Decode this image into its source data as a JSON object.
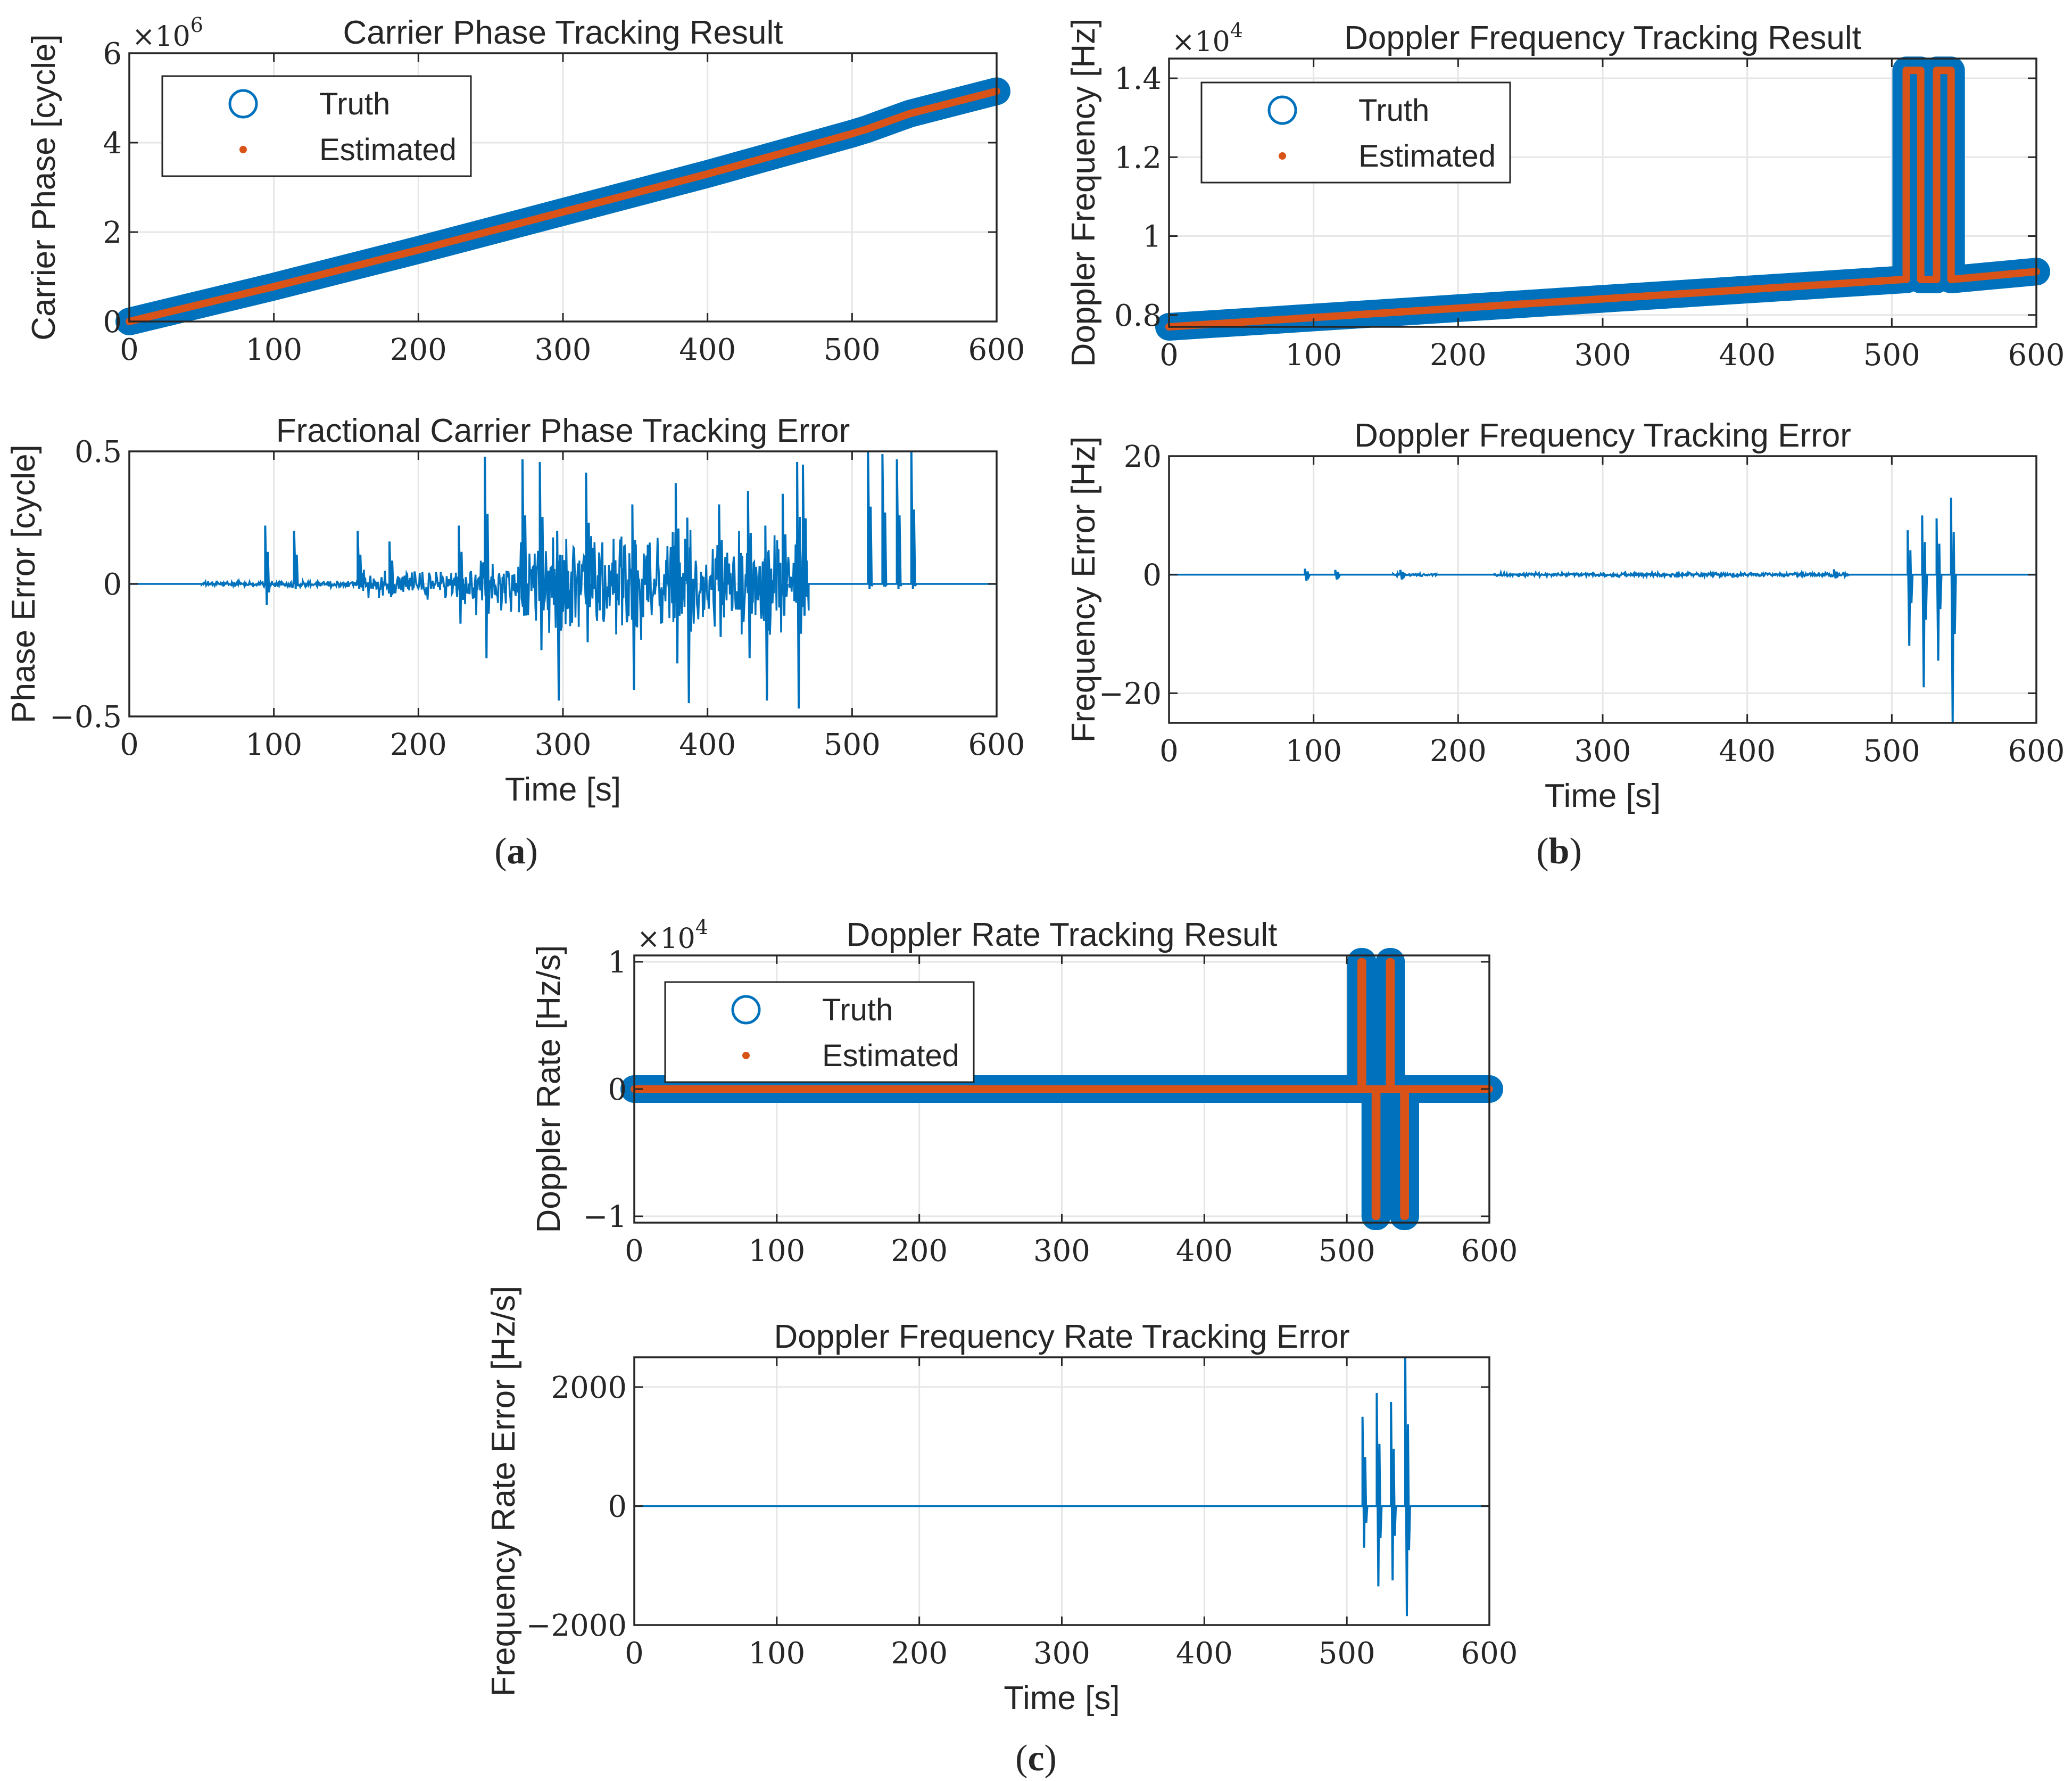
{
  "chart_data": [
    {
      "id": "a_top",
      "type": "line",
      "title": "Carrier Phase Tracking Result",
      "xlabel": "",
      "ylabel": "Carrier Phase [cycle]",
      "exponent_label": "×10",
      "exponent_power": "6",
      "xlim": [
        0,
        600
      ],
      "ylim": [
        0,
        6
      ],
      "xticks": [
        0,
        100,
        200,
        300,
        400,
        500,
        600
      ],
      "xtick_labels": [
        "0",
        "100",
        "200",
        "300",
        "400",
        "500",
        "600"
      ],
      "yticks": [
        0,
        2,
        4,
        6
      ],
      "ytick_labels": [
        "0",
        "2",
        "4",
        "6"
      ],
      "grid": true,
      "legend": {
        "position": "top-left",
        "entries": [
          "Truth",
          "Estimated"
        ]
      },
      "series": [
        {
          "name": "Truth",
          "style": "thick",
          "color": "#0072BD",
          "x": [
            0,
            100,
            200,
            300,
            400,
            500,
            510,
            540,
            600
          ],
          "y": [
            0,
            0.78,
            1.6,
            2.45,
            3.3,
            4.2,
            4.3,
            4.65,
            5.15
          ]
        },
        {
          "name": "Estimated",
          "style": "thin",
          "color": "#D95319",
          "x": [
            0,
            100,
            200,
            300,
            400,
            500,
            510,
            540,
            600
          ],
          "y": [
            0,
            0.78,
            1.6,
            2.45,
            3.3,
            4.2,
            4.3,
            4.65,
            5.15
          ]
        }
      ]
    },
    {
      "id": "a_bottom",
      "type": "line",
      "title": "Fractional Carrier Phase Tracking Error",
      "xlabel": "Time [s]",
      "ylabel": "Phase Error [cycle]",
      "xlim": [
        0,
        600
      ],
      "ylim": [
        -0.5,
        0.5
      ],
      "xticks": [
        0,
        100,
        200,
        300,
        400,
        500,
        600
      ],
      "xtick_labels": [
        "0",
        "100",
        "200",
        "300",
        "400",
        "500",
        "600"
      ],
      "yticks": [
        -0.5,
        0,
        0.5
      ],
      "ytick_labels": [
        "−0.5",
        "0",
        "0.5"
      ],
      "grid": true,
      "noise": [
        {
          "from": 50,
          "to": 90,
          "amp": 0.01
        },
        {
          "from": 90,
          "to": 160,
          "amp": 0.015
        },
        {
          "from": 160,
          "to": 230,
          "amp": 0.06
        },
        {
          "from": 230,
          "to": 270,
          "amp": 0.12
        },
        {
          "from": 270,
          "to": 470,
          "amp": 0.22
        }
      ],
      "spikes": [
        {
          "x": 94,
          "top": 0.22,
          "bottom": -0.08
        },
        {
          "x": 114,
          "top": 0.2,
          "bottom": -0.02
        },
        {
          "x": 158,
          "top": 0.2,
          "bottom": -0.02
        },
        {
          "x": 180,
          "top": 0.16,
          "bottom": -0.05
        },
        {
          "x": 228,
          "top": 0.22,
          "bottom": -0.15
        },
        {
          "x": 246,
          "top": 0.48,
          "bottom": -0.28
        },
        {
          "x": 272,
          "top": 0.47,
          "bottom": -0.12
        },
        {
          "x": 284,
          "top": 0.46,
          "bottom": -0.25
        },
        {
          "x": 296,
          "top": 0.2,
          "bottom": -0.44
        },
        {
          "x": 316,
          "top": 0.42,
          "bottom": -0.22
        },
        {
          "x": 348,
          "top": 0.3,
          "bottom": -0.4
        },
        {
          "x": 378,
          "top": 0.38,
          "bottom": -0.3
        },
        {
          "x": 386,
          "top": 0.25,
          "bottom": -0.45
        },
        {
          "x": 408,
          "top": 0.3,
          "bottom": -0.2
        },
        {
          "x": 428,
          "top": 0.35,
          "bottom": -0.28
        },
        {
          "x": 440,
          "top": 0.22,
          "bottom": -0.44
        },
        {
          "x": 452,
          "top": 0.34,
          "bottom": -0.12
        },
        {
          "x": 462,
          "top": 0.46,
          "bottom": -0.47
        },
        {
          "x": 466,
          "top": 0.45,
          "bottom": -0.12
        },
        {
          "x": 511,
          "top": 0.53,
          "bottom": -0.02
        },
        {
          "x": 521,
          "top": 0.49,
          "bottom": -0.01
        },
        {
          "x": 531,
          "top": 0.47,
          "bottom": -0.02
        },
        {
          "x": 541,
          "top": 0.51,
          "bottom": -0.02
        }
      ]
    },
    {
      "id": "b_top",
      "type": "line",
      "title": "Doppler Frequency Tracking Result",
      "xlabel": "",
      "ylabel": "Doppler Frequency [Hz]",
      "exponent_label": "×10",
      "exponent_power": "4",
      "xlim": [
        0,
        600
      ],
      "ylim": [
        0.77,
        1.45
      ],
      "xticks": [
        0,
        100,
        200,
        300,
        400,
        500,
        600
      ],
      "xtick_labels": [
        "0",
        "100",
        "200",
        "300",
        "400",
        "500",
        "600"
      ],
      "yticks": [
        0.8,
        1,
        1.2,
        1.4
      ],
      "ytick_labels": [
        "0.8",
        "1",
        "1.2",
        "1.4"
      ],
      "grid": true,
      "legend": {
        "position": "top-left",
        "entries": [
          "Truth",
          "Estimated"
        ]
      },
      "series": [
        {
          "name": "Truth",
          "style": "thick",
          "color": "#0072BD",
          "x": [
            0,
            508,
            510,
            510,
            520,
            520,
            531,
            531,
            541,
            541,
            600
          ],
          "y": [
            0.77,
            0.89,
            0.89,
            1.42,
            1.42,
            0.89,
            0.89,
            1.42,
            1.42,
            0.89,
            0.91
          ]
        },
        {
          "name": "Estimated",
          "style": "thin",
          "color": "#D95319",
          "x": [
            0,
            508,
            510,
            510,
            520,
            520,
            531,
            531,
            541,
            541,
            600
          ],
          "y": [
            0.77,
            0.89,
            0.89,
            1.42,
            1.42,
            0.89,
            0.89,
            1.42,
            1.42,
            0.89,
            0.91
          ]
        }
      ]
    },
    {
      "id": "b_bottom",
      "type": "line",
      "title": "Doppler Frequency Tracking Error",
      "xlabel": "Time [s]",
      "ylabel": "Frequency Error [Hz]",
      "xlim": [
        0,
        600
      ],
      "ylim": [
        -25,
        20
      ],
      "xticks": [
        0,
        100,
        200,
        300,
        400,
        500,
        600
      ],
      "xtick_labels": [
        "0",
        "100",
        "200",
        "300",
        "400",
        "500",
        "600"
      ],
      "yticks": [
        -20,
        0,
        20
      ],
      "ytick_labels": [
        "−20",
        "0",
        "20"
      ],
      "grid": true,
      "noise": [
        {
          "from": 155,
          "to": 185,
          "amp": 0.3
        },
        {
          "from": 225,
          "to": 470,
          "amp": 0.4
        }
      ],
      "spikes": [
        {
          "x": 94,
          "top": 1.0,
          "bottom": -1.0
        },
        {
          "x": 115,
          "top": 0.8,
          "bottom": -0.8
        },
        {
          "x": 160,
          "top": 0.8,
          "bottom": -0.8
        },
        {
          "x": 460,
          "top": 0.9,
          "bottom": -0.6
        },
        {
          "x": 511,
          "top": 7.5,
          "bottom": -12
        },
        {
          "x": 521,
          "top": 10,
          "bottom": -19
        },
        {
          "x": 531,
          "top": 9.5,
          "bottom": -14.5
        },
        {
          "x": 541,
          "top": 13,
          "bottom": -25
        }
      ]
    },
    {
      "id": "c_top",
      "type": "line",
      "title": "Doppler Rate Tracking Result",
      "xlabel": "",
      "ylabel": "Doppler Rate [Hz/s]",
      "exponent_label": "×10",
      "exponent_power": "4",
      "xlim": [
        0,
        600
      ],
      "ylim": [
        -1.05,
        1.05
      ],
      "xticks": [
        0,
        100,
        200,
        300,
        400,
        500,
        600
      ],
      "xtick_labels": [
        "0",
        "100",
        "200",
        "300",
        "400",
        "500",
        "600"
      ],
      "yticks": [
        -1,
        0,
        1
      ],
      "ytick_labels": [
        "−1",
        "0",
        "1"
      ],
      "grid": true,
      "legend": {
        "position": "top-left",
        "entries": [
          "Truth",
          "Estimated"
        ]
      },
      "series": [
        {
          "name": "Truth",
          "style": "thick",
          "color": "#0072BD",
          "x": [
            0,
            510,
            510,
            511,
            511,
            520,
            520,
            521,
            521,
            530,
            530,
            531,
            531,
            540,
            540,
            541,
            541,
            600
          ],
          "y": [
            0,
            0,
            1,
            1,
            0,
            0,
            -1,
            -1,
            0,
            0,
            1,
            1,
            0,
            0,
            -1,
            -1,
            0,
            0
          ]
        },
        {
          "name": "Estimated",
          "style": "thin",
          "color": "#D95319",
          "x": [
            0,
            510,
            510,
            511,
            511,
            520,
            520,
            521,
            521,
            530,
            530,
            531,
            531,
            540,
            540,
            541,
            541,
            600
          ],
          "y": [
            0,
            0,
            1,
            1,
            0,
            0,
            -1,
            -1,
            0,
            0,
            1,
            1,
            0,
            0,
            -1,
            -1,
            0,
            0
          ]
        }
      ]
    },
    {
      "id": "c_bottom",
      "type": "line",
      "title": "Doppler Frequency Rate Tracking Error",
      "xlabel": "Time [s]",
      "ylabel": "Frequency Rate Error [Hz/s]",
      "xlim": [
        0,
        600
      ],
      "ylim": [
        -2000,
        2500
      ],
      "xticks": [
        0,
        100,
        200,
        300,
        400,
        500,
        600
      ],
      "xtick_labels": [
        "0",
        "100",
        "200",
        "300",
        "400",
        "500",
        "600"
      ],
      "yticks": [
        -2000,
        0,
        2000
      ],
      "ytick_labels": [
        "−2000",
        "0",
        "2000"
      ],
      "grid": true,
      "noise": [],
      "spikes": [
        {
          "x": 511,
          "top": 1500,
          "bottom": -700
        },
        {
          "x": 521,
          "top": 1900,
          "bottom": -1350
        },
        {
          "x": 531,
          "top": 1750,
          "bottom": -1250
        },
        {
          "x": 541,
          "top": 2500,
          "bottom": -1850
        }
      ]
    }
  ],
  "panel_labels": [
    {
      "id": "a",
      "open": "(",
      "letter": "a",
      "close": ")"
    },
    {
      "id": "b",
      "open": "(",
      "letter": "b",
      "close": ")"
    },
    {
      "id": "c",
      "open": "(",
      "letter": "c",
      "close": ")"
    }
  ],
  "colors": {
    "truth": "#0072BD",
    "estimated": "#D95319",
    "grid": "#e6e6e6",
    "axis": "#262626"
  }
}
